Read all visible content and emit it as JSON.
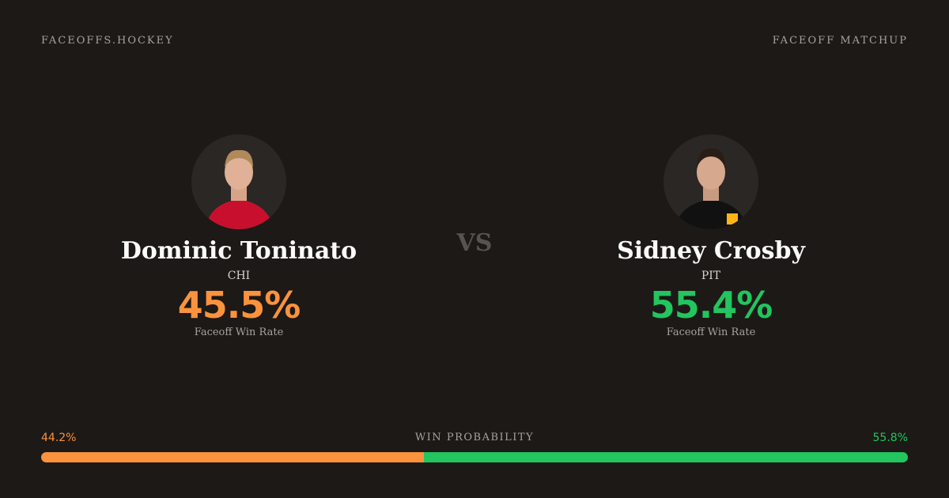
{
  "header": {
    "brand": "FACEOFFS.HOCKEY",
    "label": "FACEOFF MATCHUP"
  },
  "vs": "VS",
  "players": [
    {
      "name": "Dominic Toninato",
      "team": "CHI",
      "rate": "45.5%",
      "rate_label": "Faceoff Win Rate",
      "color": "#fb923c"
    },
    {
      "name": "Sidney Crosby",
      "team": "PIT",
      "rate": "55.4%",
      "rate_label": "Faceoff Win Rate",
      "color": "#22c55e"
    }
  ],
  "win_probability": {
    "label": "WIN PROBABILITY",
    "values": [
      44.2,
      55.8
    ],
    "value_labels": [
      "44.2%",
      "55.8%"
    ]
  }
}
